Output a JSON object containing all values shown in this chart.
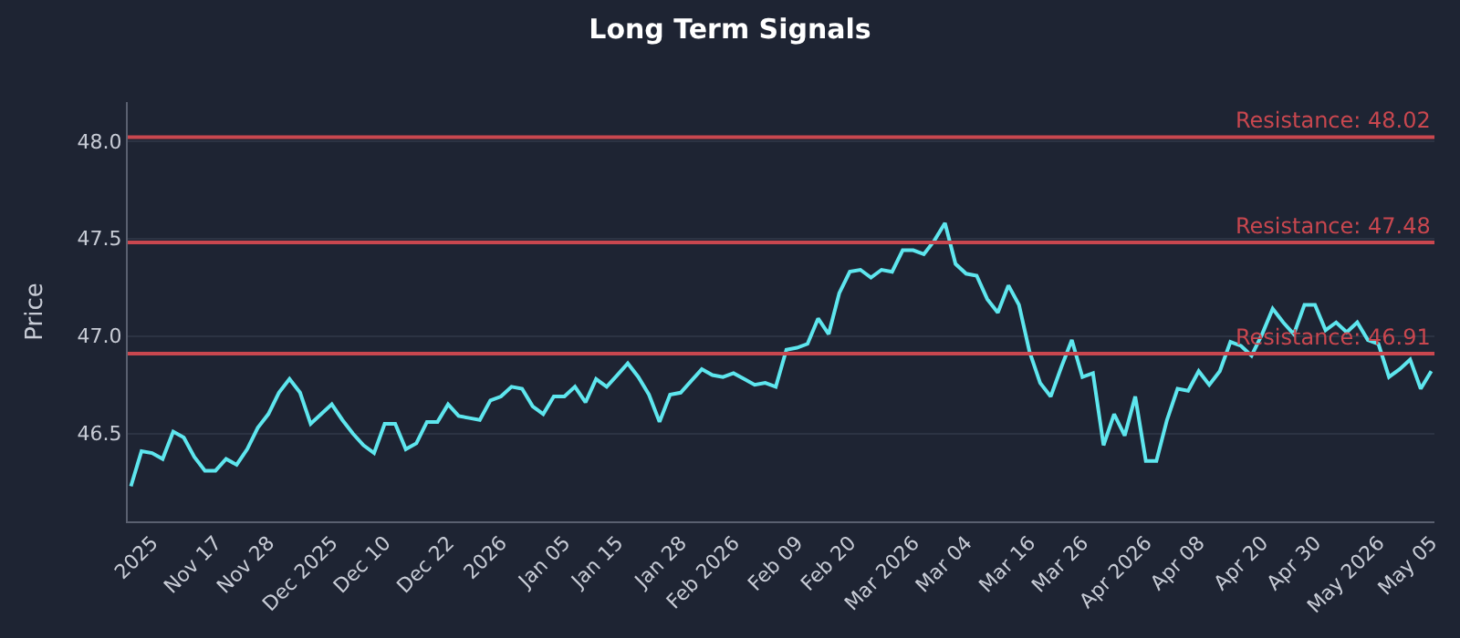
{
  "chart_data": {
    "type": "line",
    "title": "Long Term Signals",
    "ylabel": "Price",
    "categories": [
      null,
      null,
      "2025",
      null,
      null,
      null,
      null,
      null,
      "Nov 17",
      null,
      null,
      null,
      null,
      "Nov 28",
      null,
      null,
      null,
      null,
      null,
      "Dec 2025",
      null,
      null,
      null,
      null,
      "Dec 10",
      null,
      null,
      null,
      null,
      null,
      "Dec 22",
      null,
      null,
      null,
      null,
      "2026",
      null,
      null,
      null,
      null,
      null,
      "Jan 05",
      null,
      null,
      null,
      null,
      "Jan 15",
      null,
      null,
      null,
      null,
      null,
      "Jan 28",
      null,
      null,
      null,
      null,
      "Feb 2026",
      null,
      null,
      null,
      null,
      null,
      "Feb 09",
      null,
      null,
      null,
      null,
      "Feb 20",
      null,
      null,
      null,
      null,
      null,
      "Mar 2026",
      null,
      null,
      null,
      null,
      "Mar 04",
      null,
      null,
      null,
      null,
      null,
      "Mar 16",
      null,
      null,
      null,
      null,
      "Mar 26",
      null,
      null,
      null,
      null,
      null,
      "Apr 2026",
      null,
      null,
      null,
      null,
      "Apr 08",
      null,
      null,
      null,
      null,
      null,
      "Apr 20",
      null,
      null,
      null,
      null,
      "Apr 30",
      null,
      null,
      null,
      null,
      null,
      "May 2026",
      null,
      null,
      null,
      null,
      "May 05"
    ],
    "series": [
      {
        "color": "#5ee6ee",
        "values": [
          46.23,
          46.41,
          46.4,
          46.37,
          46.51,
          46.48,
          46.38,
          46.31,
          46.31,
          46.37,
          46.34,
          46.42,
          46.53,
          46.6,
          46.71,
          46.78,
          46.71,
          46.55,
          46.6,
          46.65,
          46.57,
          46.5,
          46.44,
          46.4,
          46.55,
          46.55,
          46.42,
          46.45,
          46.56,
          46.56,
          46.65,
          46.59,
          46.58,
          46.57,
          46.67,
          46.69,
          46.74,
          46.73,
          46.64,
          46.6,
          46.69,
          46.69,
          46.74,
          46.66,
          46.78,
          46.74,
          46.8,
          46.86,
          46.79,
          46.7,
          46.56,
          46.7,
          46.71,
          46.77,
          46.83,
          46.8,
          46.79,
          46.81,
          46.78,
          46.75,
          46.76,
          46.74,
          46.93,
          46.94,
          46.96,
          47.09,
          47.01,
          47.22,
          47.33,
          47.34,
          47.3,
          47.34,
          47.33,
          47.44,
          47.44,
          47.42,
          47.49,
          47.58,
          47.37,
          47.32,
          47.31,
          47.19,
          47.12,
          47.26,
          47.16,
          46.92,
          46.76,
          46.69,
          46.84,
          46.98,
          46.79,
          46.81,
          46.44,
          46.6,
          46.49,
          46.69,
          46.36,
          46.36,
          46.57,
          46.73,
          46.72,
          46.82,
          46.75,
          46.82,
          46.97,
          46.95,
          46.9,
          47.01,
          47.14,
          47.07,
          47.01,
          47.16,
          47.16,
          47.03,
          47.07,
          47.02,
          47.07,
          46.98,
          46.96,
          46.79,
          46.83,
          46.88,
          46.73,
          46.82
        ]
      }
    ],
    "ylim": [
      46.05,
      48.2
    ],
    "yticks": [
      46.5,
      {
        "value": 47,
        "label": "47.0"
      },
      47.5,
      {
        "value": 48,
        "label": "48.0"
      }
    ],
    "grid": "y",
    "marker": "none",
    "line_style": "solid",
    "ref_lines": [
      {
        "axis": "y",
        "value": 48.02,
        "label": "Resistance: 48.02",
        "color": "#c9474f"
      },
      {
        "axis": "y",
        "value": 47.48,
        "label": "Resistance: 47.48",
        "color": "#c9474f"
      },
      {
        "axis": "y",
        "value": 46.91,
        "label": "Resistance: 46.91",
        "color": "#c9474f"
      }
    ]
  }
}
